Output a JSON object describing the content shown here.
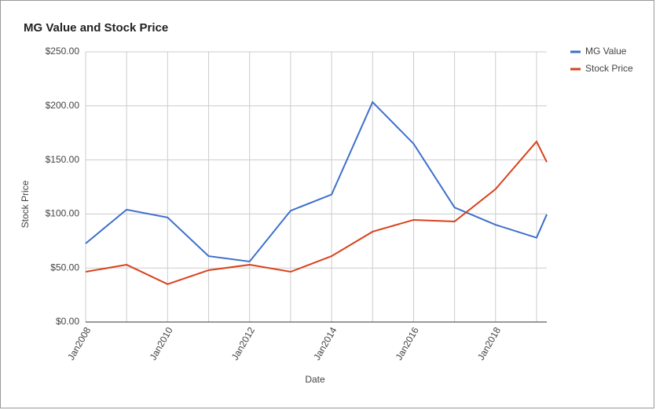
{
  "chart_data": {
    "type": "line",
    "title": "MG Value and Stock Price",
    "x_label": "Date",
    "y_label": "Stock Price",
    "x": [
      2008,
      2009,
      2010,
      2011,
      2012,
      2013,
      2014,
      2015,
      2016,
      2017,
      2018,
      2019,
      2019.25
    ],
    "series": [
      {
        "name": "MG Value",
        "color": "#3d6fcc",
        "values": [
          72.7,
          104,
          96.7,
          61,
          56,
          103,
          118,
          203.5,
          165,
          106,
          90,
          78,
          99.6
        ]
      },
      {
        "name": "Stock Price",
        "color": "#d8421c",
        "values": [
          46.5,
          53,
          35,
          48,
          53,
          46.5,
          61,
          83.6,
          94.5,
          93,
          123,
          167,
          148
        ]
      }
    ],
    "xlim": [
      2008,
      2019.25
    ],
    "xticks": [
      {
        "value": 2008,
        "label": "Jan2008"
      },
      {
        "value": 2010,
        "label": "Jan2010"
      },
      {
        "value": 2012,
        "label": "Jan2012"
      },
      {
        "value": 2014,
        "label": "Jan2014"
      },
      {
        "value": 2016,
        "label": "Jan2016"
      },
      {
        "value": 2018,
        "label": "Jan2018"
      }
    ],
    "x_minor_ticks": [
      2009,
      2011,
      2013,
      2015,
      2017,
      2019
    ],
    "ylim": [
      0,
      250
    ],
    "yticks": [
      {
        "value": 0,
        "label": "$0.00"
      },
      {
        "value": 50,
        "label": "$50.00"
      },
      {
        "value": 100,
        "label": "$100.00"
      },
      {
        "value": 150,
        "label": "$150.00"
      },
      {
        "value": 200,
        "label": "$200.00"
      },
      {
        "value": 250,
        "label": "$250.00"
      }
    ],
    "grid": true,
    "legend": "right"
  }
}
